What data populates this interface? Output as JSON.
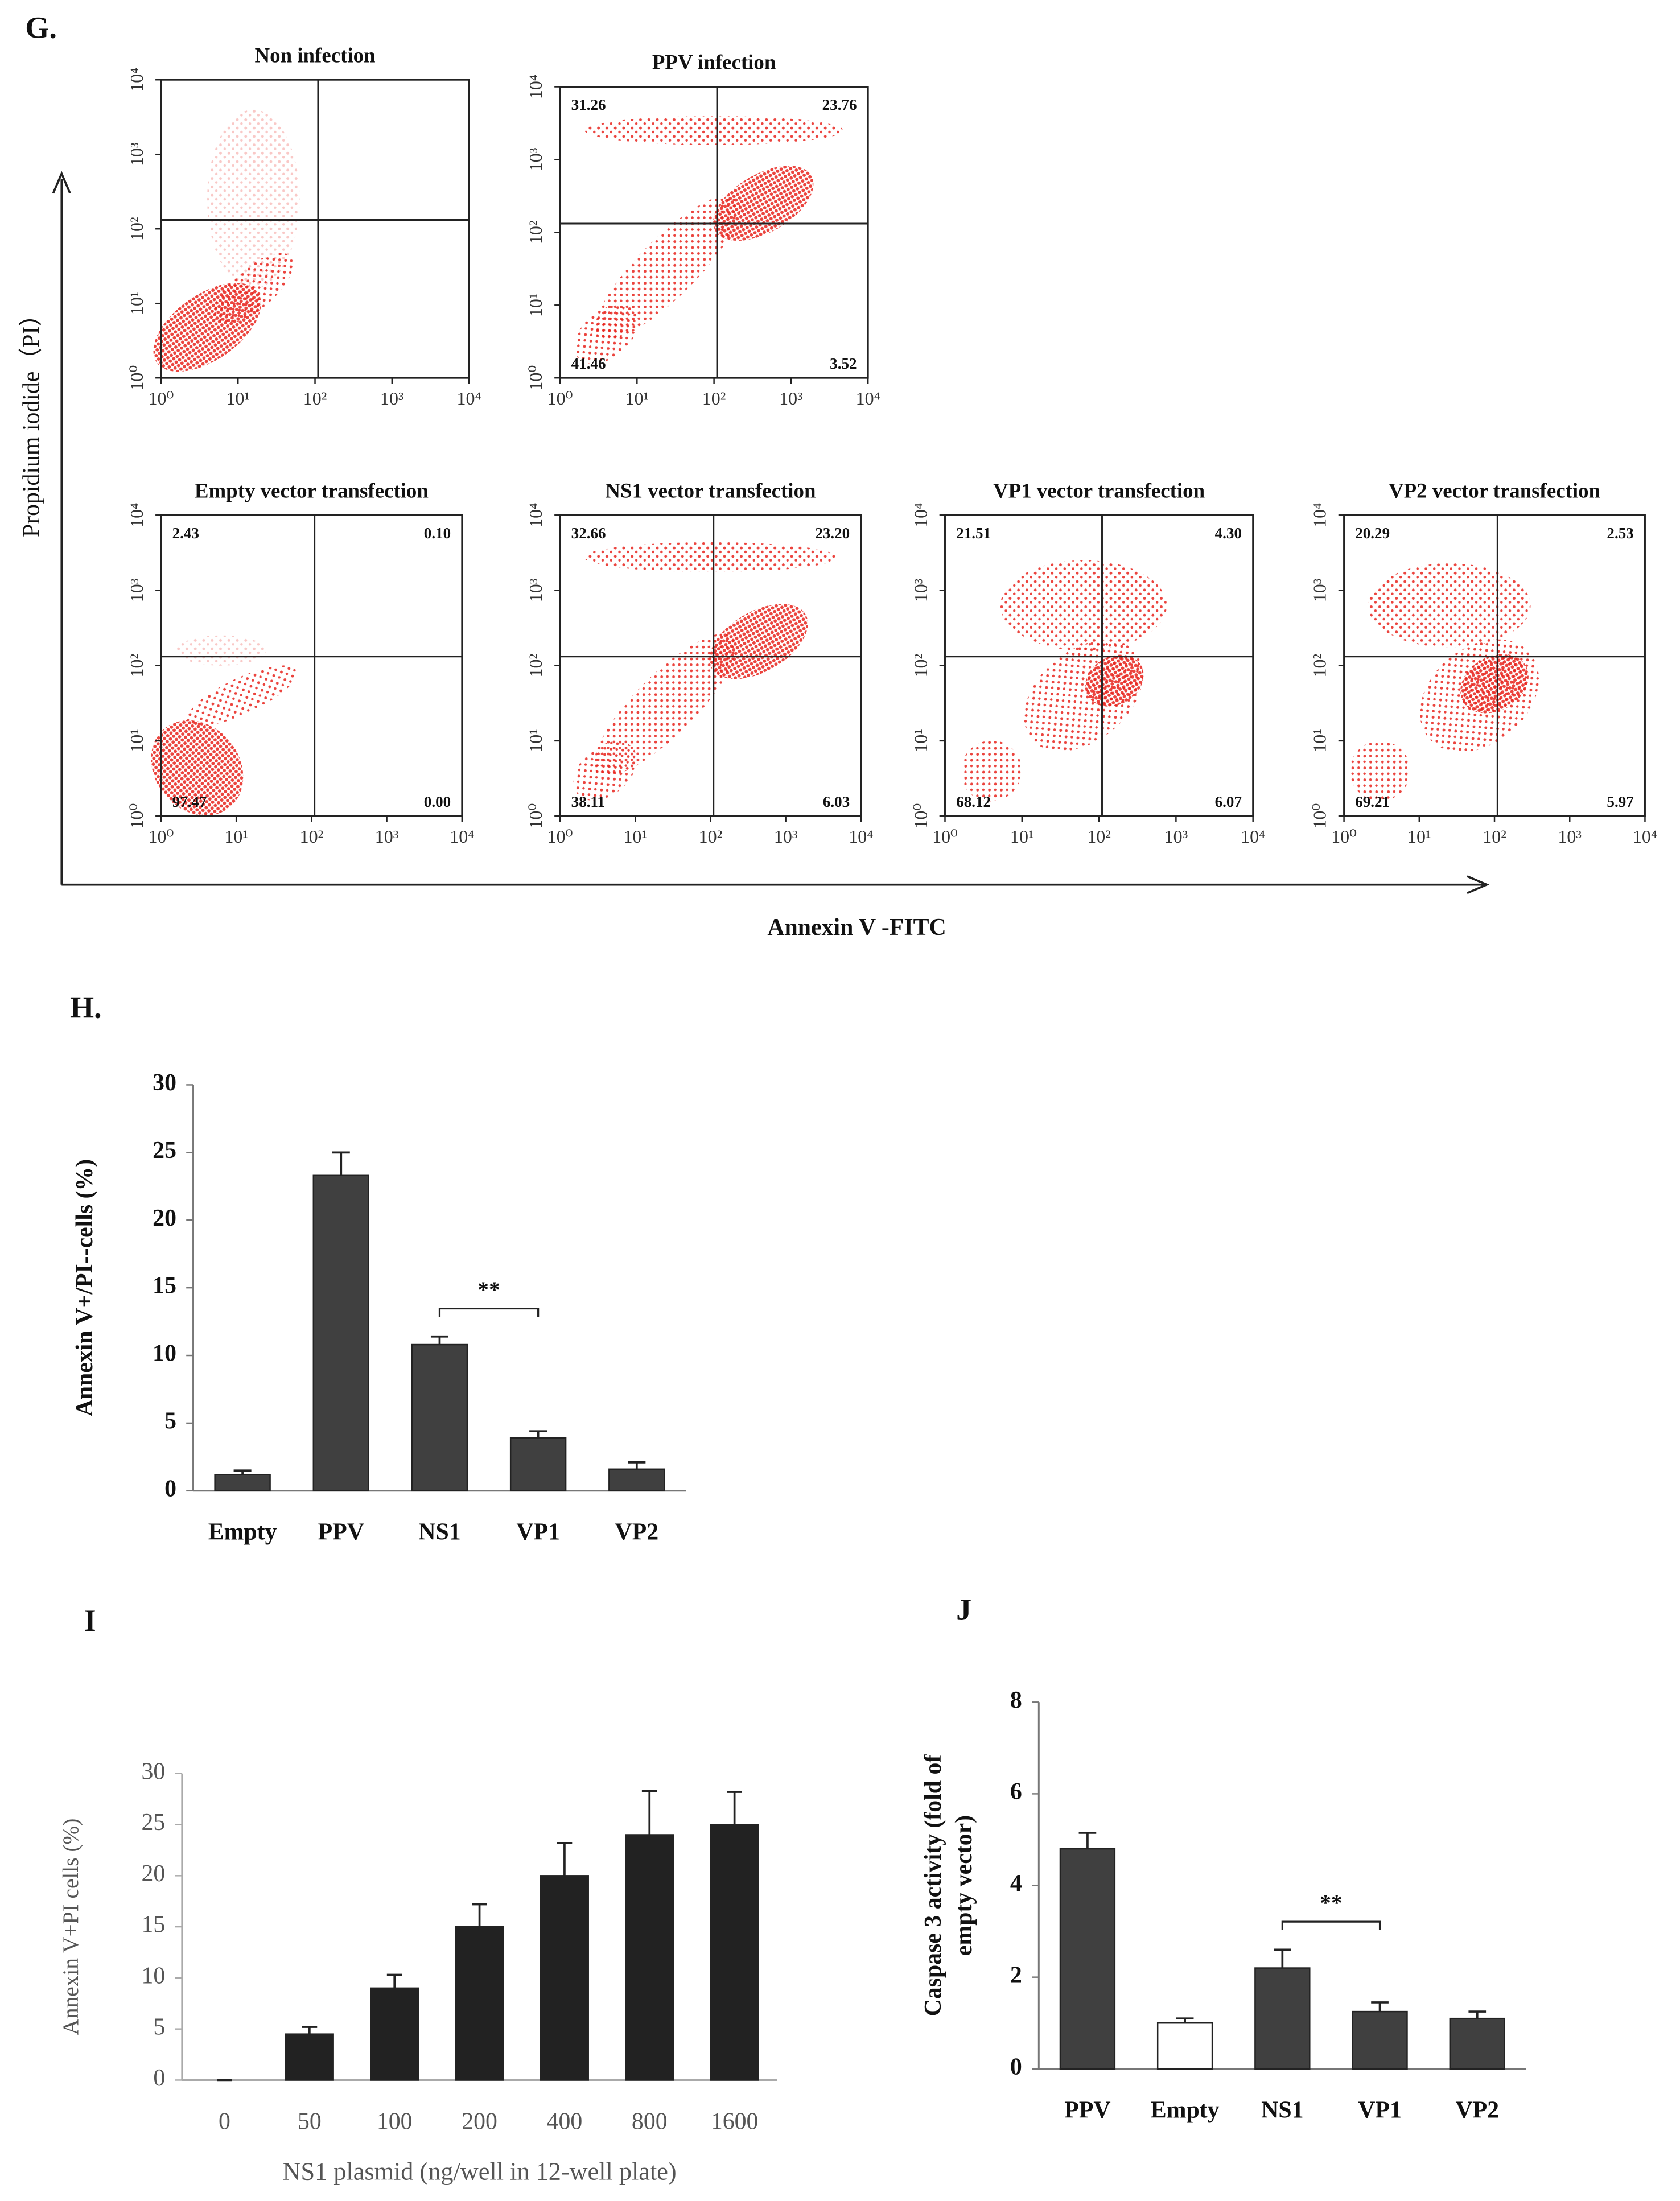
{
  "figure": {
    "panel_labels": [
      "G.",
      "H.",
      "I",
      "J"
    ],
    "g_ylabel": "Propidium iodide（PI）",
    "g_xlabel": "Annexin V -FITC"
  },
  "chart_data": [
    {
      "type": "flow",
      "title": "Non infection",
      "color": "#e8231c",
      "log": true,
      "xlim": [
        1,
        10000
      ],
      "ylim": [
        1,
        10000
      ],
      "xticks": [
        {
          "value": 1,
          "label": "10⁰"
        },
        {
          "value": 10,
          "label": "10¹"
        },
        {
          "value": 100,
          "label": "10²"
        },
        {
          "value": 1000,
          "label": "10³"
        },
        {
          "value": 10000,
          "label": "10⁴"
        }
      ],
      "yticks": [
        {
          "value": 1,
          "label": "10⁰"
        },
        {
          "value": 10,
          "label": "10¹"
        },
        {
          "value": 100,
          "label": "10²"
        },
        {
          "value": 1000,
          "label": "10³"
        },
        {
          "value": 10000,
          "label": "10⁴"
        }
      ]
    },
    {
      "type": "flow",
      "title": "PPV infection",
      "color": "#e8231c",
      "log": true,
      "xlim": [
        1,
        10000
      ],
      "ylim": [
        1,
        10000
      ],
      "xticks": [
        {
          "value": 1,
          "label": "10⁰"
        },
        {
          "value": 10,
          "label": "10¹"
        },
        {
          "value": 100,
          "label": "10²"
        },
        {
          "value": 1000,
          "label": "10³"
        },
        {
          "value": 10000,
          "label": "10⁴"
        }
      ],
      "yticks": [
        {
          "value": 1,
          "label": "10⁰"
        },
        {
          "value": 10,
          "label": "10¹"
        },
        {
          "value": 100,
          "label": "10²"
        },
        {
          "value": 1000,
          "label": "10³"
        },
        {
          "value": 10000,
          "label": "10⁴"
        }
      ],
      "quadrant_values": [
        31.26,
        23.76,
        41.46,
        3.52
      ],
      "quadrant_labels": [
        "31.26",
        "23.76",
        "41.46",
        "3.52"
      ]
    },
    {
      "type": "flow",
      "title": "Empty vector transfection",
      "color": "#e8231c",
      "log": true,
      "xlim": [
        1,
        10000
      ],
      "ylim": [
        1,
        10000
      ],
      "xticks": [
        {
          "value": 1,
          "label": "10⁰"
        },
        {
          "value": 10,
          "label": "10¹"
        },
        {
          "value": 100,
          "label": "10²"
        },
        {
          "value": 1000,
          "label": "10³"
        },
        {
          "value": 10000,
          "label": "10⁴"
        }
      ],
      "yticks": [
        {
          "value": 1,
          "label": "10⁰"
        },
        {
          "value": 10,
          "label": "10¹"
        },
        {
          "value": 100,
          "label": "10²"
        },
        {
          "value": 1000,
          "label": "10³"
        },
        {
          "value": 10000,
          "label": "10⁴"
        }
      ],
      "quadrant_values": [
        2.43,
        0.1,
        97.47,
        0
      ],
      "quadrant_labels": [
        "2.43",
        "0.10",
        "97.47",
        "0.00"
      ]
    },
    {
      "type": "flow",
      "title": "NS1 vector transfection",
      "color": "#e8231c",
      "log": true,
      "xlim": [
        1,
        10000
      ],
      "ylim": [
        1,
        10000
      ],
      "xticks": [
        {
          "value": 1,
          "label": "10⁰"
        },
        {
          "value": 10,
          "label": "10¹"
        },
        {
          "value": 100,
          "label": "10²"
        },
        {
          "value": 1000,
          "label": "10³"
        },
        {
          "value": 10000,
          "label": "10⁴"
        }
      ],
      "yticks": [
        {
          "value": 1,
          "label": "10⁰"
        },
        {
          "value": 10,
          "label": "10¹"
        },
        {
          "value": 100,
          "label": "10²"
        },
        {
          "value": 1000,
          "label": "10³"
        },
        {
          "value": 10000,
          "label": "10⁴"
        }
      ],
      "quadrant_values": [
        32.66,
        23.2,
        38.11,
        6.03
      ],
      "quadrant_labels": [
        "32.66",
        "23.20",
        "38.11",
        "6.03"
      ]
    },
    {
      "type": "flow",
      "title": "VP1 vector transfection",
      "color": "#e8231c",
      "log": true,
      "xlim": [
        1,
        10000
      ],
      "ylim": [
        1,
        10000
      ],
      "xticks": [
        {
          "value": 1,
          "label": "10⁰"
        },
        {
          "value": 10,
          "label": "10¹"
        },
        {
          "value": 100,
          "label": "10²"
        },
        {
          "value": 1000,
          "label": "10³"
        },
        {
          "value": 10000,
          "label": "10⁴"
        }
      ],
      "yticks": [
        {
          "value": 1,
          "label": "10⁰"
        },
        {
          "value": 10,
          "label": "10¹"
        },
        {
          "value": 100,
          "label": "10²"
        },
        {
          "value": 1000,
          "label": "10³"
        },
        {
          "value": 10000,
          "label": "10⁴"
        }
      ],
      "quadrant_values": [
        21.51,
        4.3,
        68.12,
        6.07
      ],
      "quadrant_labels": [
        "21.51",
        "4.30",
        "68.12",
        "6.07"
      ]
    },
    {
      "type": "flow",
      "title": "VP2 vector transfection",
      "color": "#e8231c",
      "log": true,
      "xlim": [
        1,
        10000
      ],
      "ylim": [
        1,
        10000
      ],
      "xticks": [
        {
          "value": 1,
          "label": "10⁰"
        },
        {
          "value": 10,
          "label": "10¹"
        },
        {
          "value": 100,
          "label": "10²"
        },
        {
          "value": 1000,
          "label": "10³"
        },
        {
          "value": 10000,
          "label": "10⁴"
        }
      ],
      "yticks": [
        {
          "value": 1,
          "label": "10⁰"
        },
        {
          "value": 10,
          "label": "10¹"
        },
        {
          "value": 100,
          "label": "10²"
        },
        {
          "value": 1000,
          "label": "10³"
        },
        {
          "value": 10000,
          "label": "10⁴"
        }
      ],
      "quadrant_values": [
        20.29,
        2.53,
        69.21,
        5.97
      ],
      "quadrant_labels": [
        "20.29",
        "2.53",
        "69.21",
        "5.97"
      ]
    },
    {
      "type": "bar",
      "ylabel": "Annexin V+/PI--cells (%)",
      "categories": [
        "Empty",
        "PPV",
        "NS1",
        "VP1",
        "VP2"
      ],
      "values": [
        1.2,
        23.3,
        10.8,
        3.9,
        1.6
      ],
      "errors": [
        0.3,
        1.7,
        0.6,
        0.5,
        0.5
      ],
      "color": "#404040",
      "ylim": [
        0,
        30
      ],
      "yticks": [
        0,
        5,
        10,
        15,
        20,
        25,
        30
      ],
      "annotation": "**"
    },
    {
      "type": "bar",
      "xlabel": "NS1 plasmid (ng/well in 12-well plate)",
      "ylabel": "Annexin V+PI cells (%)",
      "categories": [
        "0",
        "50",
        "100",
        "200",
        "400",
        "800",
        "1600"
      ],
      "values": [
        0,
        4.5,
        9,
        15,
        20,
        24,
        25
      ],
      "errors": [
        0,
        0.7,
        1.3,
        2.2,
        3.2,
        4.3,
        3.2
      ],
      "color": "#222222",
      "ylim": [
        0,
        30
      ],
      "yticks": [
        0,
        5,
        10,
        15,
        20,
        25,
        30
      ]
    },
    {
      "type": "bar",
      "ylabel": [
        "Caspase 3 activity (fold of",
        "empty vector)"
      ],
      "categories": [
        "PPV",
        "Empty",
        "NS1",
        "VP1",
        "VP2"
      ],
      "values": [
        4.8,
        1.0,
        2.2,
        1.25,
        1.1
      ],
      "errors": [
        0.35,
        0.1,
        0.4,
        0.2,
        0.15
      ],
      "colors": [
        "#404040",
        "#ffffff",
        "#404040",
        "#404040",
        "#404040"
      ],
      "ylim": [
        0,
        8
      ],
      "yticks": [
        0,
        2,
        4,
        6,
        8
      ],
      "annotation": "**"
    }
  ]
}
